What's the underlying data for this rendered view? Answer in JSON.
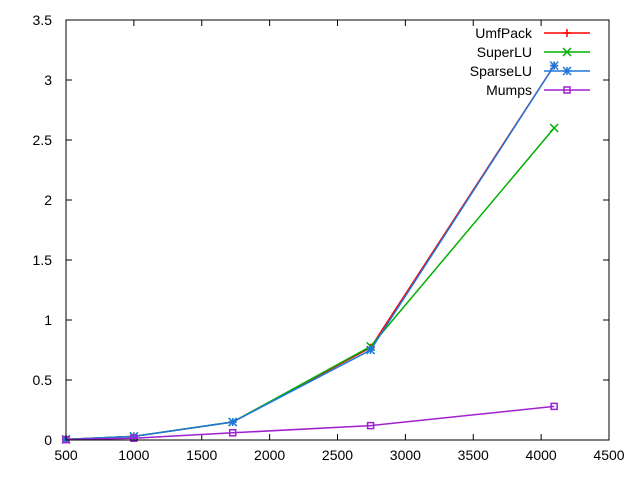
{
  "chart_data": {
    "type": "line",
    "title": "",
    "xlabel": "",
    "ylabel": "",
    "xlim": [
      500,
      4500
    ],
    "ylim": [
      0,
      3.5
    ],
    "x_ticks": [
      "500",
      "1000",
      "1500",
      "2000",
      "2500",
      "3000",
      "3500",
      "4000",
      "4500"
    ],
    "y_ticks": [
      "0",
      "0.5",
      "1",
      "1.5",
      "2",
      "2.5",
      "3",
      "3.5"
    ],
    "grid": false,
    "legend_position": "top-right",
    "series": [
      {
        "name": "UmfPack",
        "color": "#ff0000",
        "marker": "plus",
        "x": [
          500,
          1000,
          1728,
          2744,
          4096
        ],
        "y": [
          0.005,
          0.03,
          0.15,
          0.77,
          3.12
        ]
      },
      {
        "name": "SuperLU",
        "color": "#00b000",
        "marker": "cross",
        "x": [
          500,
          1000,
          1728,
          2744,
          4096
        ],
        "y": [
          0.005,
          0.03,
          0.15,
          0.78,
          2.6
        ]
      },
      {
        "name": "SparseLU",
        "color": "#1e78dc",
        "marker": "star",
        "x": [
          500,
          1000,
          1728,
          2744,
          4096
        ],
        "y": [
          0.005,
          0.03,
          0.15,
          0.75,
          3.12
        ]
      },
      {
        "name": "Mumps",
        "color": "#a020d0",
        "marker": "square",
        "x": [
          500,
          1000,
          1728,
          2744,
          4096
        ],
        "y": [
          0.003,
          0.015,
          0.06,
          0.12,
          0.28
        ]
      }
    ]
  }
}
